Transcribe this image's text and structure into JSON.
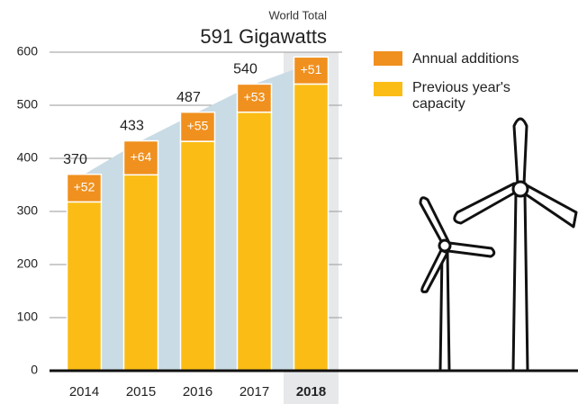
{
  "chart_data": {
    "type": "stacked_bar",
    "annotation": "World Total",
    "categories": [
      "2014",
      "2015",
      "2016",
      "2017",
      "2018"
    ],
    "series": [
      {
        "name": "Previous year's capacity",
        "color": "#fbbd15",
        "values": [
          318,
          369,
          432,
          487,
          540
        ]
      },
      {
        "name": "Annual additions",
        "color": "#f0901e",
        "values": [
          52,
          64,
          55,
          53,
          51
        ],
        "value_labels": [
          "+52",
          "+64",
          "+55",
          "+53",
          "+51"
        ]
      }
    ],
    "totals": {
      "values": [
        370,
        433,
        487,
        540,
        591
      ],
      "value_labels": [
        "370",
        "433",
        "487",
        "540",
        "591 Gigawatts"
      ],
      "color": "#c9dbe4"
    },
    "ylim": [
      0,
      600
    ],
    "yticks": [
      0,
      100,
      200,
      300,
      400,
      500,
      600
    ],
    "grid": true,
    "highlight": 4,
    "legend": "top-right"
  }
}
